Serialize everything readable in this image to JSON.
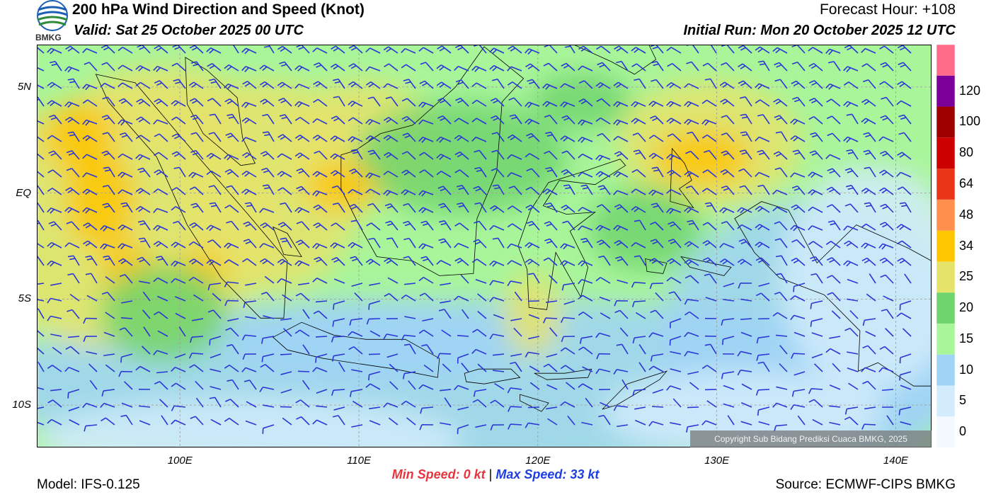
{
  "header": {
    "title": "200 hPa Wind Direction and Speed (Knot)",
    "valid": "Valid: Sat 25 October 2025 00 UTC",
    "forecast_hour": "Forecast Hour: +108",
    "initial_run": "Initial Run: Mon 20 October 2025 12 UTC",
    "logo_text": "BMKG"
  },
  "map": {
    "lat_labels": [
      "5N",
      "EQ",
      "5S",
      "10S"
    ],
    "lon_labels": [
      "100E",
      "110E",
      "120E",
      "130E",
      "140E"
    ],
    "lat_values": [
      5,
      0,
      -5,
      -10
    ],
    "lon_values": [
      100,
      110,
      120,
      130,
      140
    ],
    "lon_range": [
      92,
      142
    ],
    "lat_range": [
      -12,
      7
    ],
    "copyright": "Copyright Sub Bidang Prediksi Cuaca BMKG, 2025",
    "barb_color": "#2b36d6",
    "coast_color": "#000000"
  },
  "colorbar": {
    "labels": [
      "0",
      "5",
      "10",
      "15",
      "20",
      "25",
      "34",
      "48",
      "64",
      "80",
      "100",
      "120"
    ],
    "colors": [
      "#f3f9ff",
      "#d2ecfb",
      "#9fd4f7",
      "#a8f59a",
      "#70d46c",
      "#e6e36a",
      "#fec600",
      "#fe8f4d",
      "#eb3518",
      "#cd0000",
      "#9e0000",
      "#7b0099",
      "#ff6c8a"
    ]
  },
  "footer": {
    "min_speed": "Min Speed:   0 kt",
    "separator": "|",
    "max_speed": "Max Speed:  33 kt",
    "model": "Model: IFS-0.125",
    "source": "Source: ECMWF-CIPS BMKG"
  }
}
